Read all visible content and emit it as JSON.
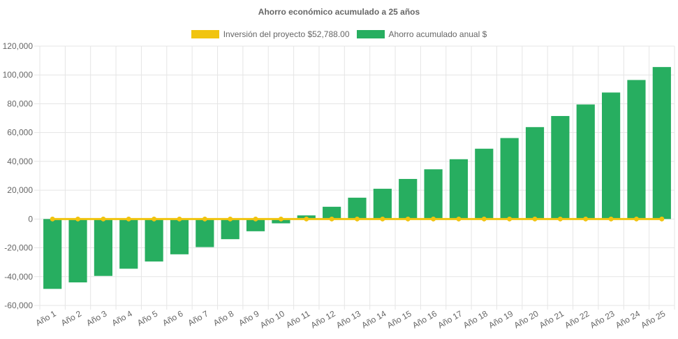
{
  "chart_data": {
    "type": "bar",
    "title": "Ahorro económico acumulado a 25 años",
    "categories": [
      "Año 1",
      "Año 2",
      "Año 3",
      "Año 4",
      "Año 5",
      "Año 6",
      "Año 7",
      "Año 8",
      "Año 9",
      "Año 10",
      "Año 11",
      "Año 12",
      "Año 13",
      "Año 14",
      "Año 15",
      "Año 16",
      "Año 17",
      "Año 18",
      "Año 19",
      "Año 20",
      "Año 21",
      "Año 22",
      "Año 23",
      "Año 24",
      "Año 25"
    ],
    "series": [
      {
        "name": "Inversión del proyecto $52,788.00",
        "type": "line",
        "color": "#f1c40f",
        "values": [
          0,
          0,
          0,
          0,
          0,
          0,
          0,
          0,
          0,
          0,
          0,
          0,
          0,
          0,
          0,
          0,
          0,
          0,
          0,
          0,
          0,
          0,
          0,
          0,
          0
        ]
      },
      {
        "name": "Ahorro acumulado anual $",
        "type": "bar",
        "color": "#27ae60",
        "values": [
          -48500,
          -44000,
          -39500,
          -34500,
          -29500,
          -24500,
          -19500,
          -14000,
          -8500,
          -3000,
          2500,
          8500,
          14800,
          21000,
          27800,
          34500,
          41500,
          48800,
          56200,
          63800,
          71500,
          79500,
          87800,
          96500,
          105500
        ]
      }
    ],
    "y_ticks": [
      "-60,000",
      "-40,000",
      "-20,000",
      "0",
      "20,000",
      "40,000",
      "60,000",
      "80,000",
      "100,000",
      "120,000"
    ],
    "ylim": [
      -60000,
      120000
    ],
    "grid": true,
    "legend_position": "top"
  }
}
